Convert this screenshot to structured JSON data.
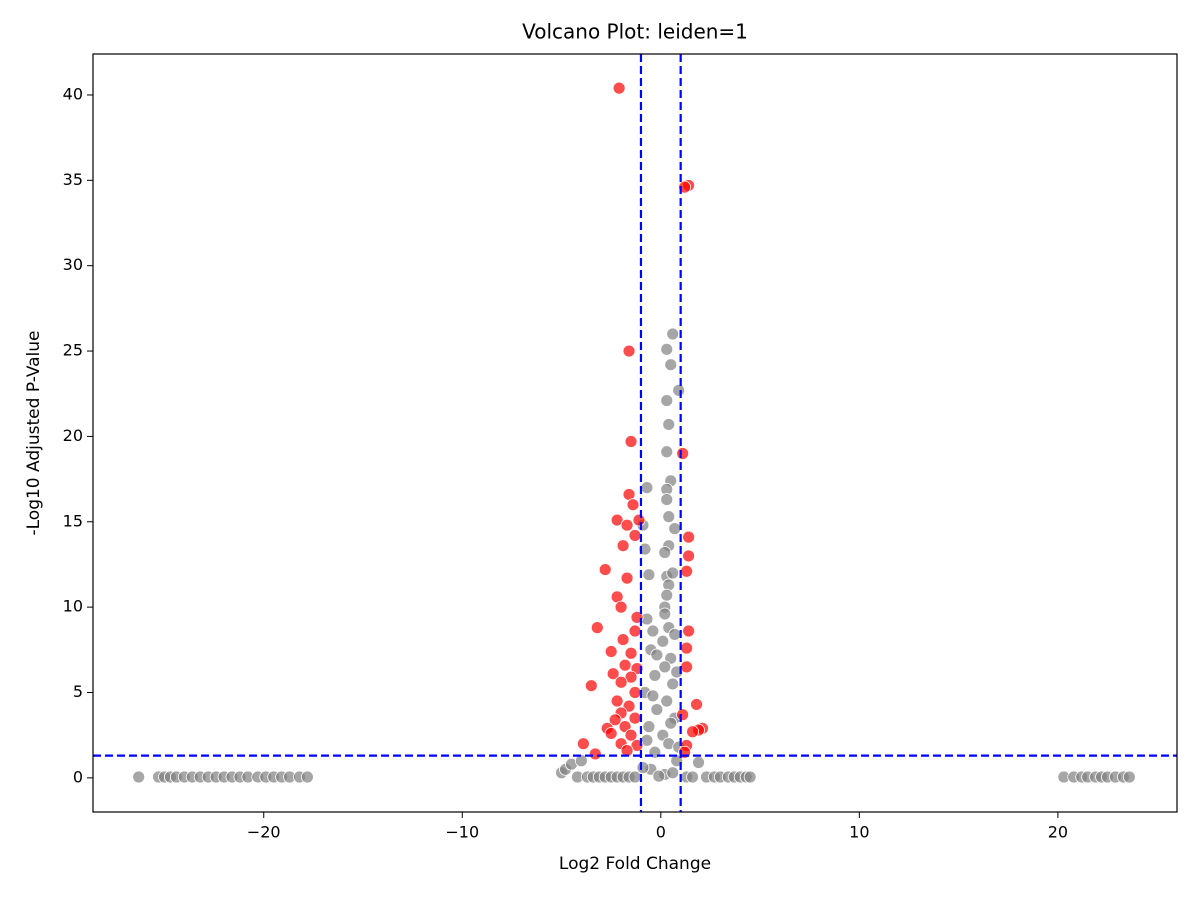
{
  "chart_data": {
    "type": "scatter",
    "title": "Volcano Plot: leiden=1",
    "x_label": "Log2 Fold Change",
    "y_label": "-Log10 Adjusted P-Value",
    "xlim": [
      -28.6,
      26.0
    ],
    "ylim": [
      -2.0,
      42.4
    ],
    "xticks": [
      {
        "value": -20,
        "label": "−20"
      },
      {
        "value": -10,
        "label": "−10"
      },
      0,
      10,
      20
    ],
    "yticks": [
      0,
      5,
      10,
      15,
      20,
      25,
      30,
      35,
      40
    ],
    "vlines": [
      -1,
      1
    ],
    "hline": 1.301,
    "threshold_color": "#0000ff",
    "series": [
      {
        "color": "#808080",
        "x": [
          -26.3,
          -25.3,
          -25.0,
          -24.7,
          -24.4,
          -24.0,
          -23.6,
          -23.2,
          -22.8,
          -22.4,
          -22.0,
          -21.6,
          -21.2,
          -20.8,
          -20.3,
          -19.9,
          -19.5,
          -19.1,
          -18.7,
          -18.2,
          -17.8,
          20.3,
          20.8,
          21.2,
          21.5,
          21.9,
          22.2,
          22.5,
          22.9,
          23.3,
          23.6,
          -5.0,
          -4.8,
          -4.5,
          -4.2,
          -4.0,
          -3.7,
          -3.4,
          -3.1,
          -2.8,
          -2.5,
          -2.2,
          -1.9,
          -1.6,
          -1.3,
          1.3,
          1.6,
          1.9,
          2.3,
          2.7,
          3.0,
          3.4,
          3.7,
          4.0,
          4.3,
          4.5,
          0.6,
          0.3,
          0.5,
          0.9,
          0.3,
          0.4,
          0.3,
          0.5,
          -0.7,
          0.3,
          0.3,
          0.4,
          0.7,
          -0.9,
          0.4,
          -0.8,
          0.2,
          -0.6,
          0.3,
          0.4,
          0.3,
          0.2,
          0.2,
          -0.7,
          0.4,
          -0.4,
          0.7,
          0.1,
          -0.5,
          0.5,
          0.2,
          -0.3,
          0.6,
          -0.8,
          0.3,
          -0.2,
          0.7,
          -0.6,
          0.1,
          0.4,
          -0.3,
          0.8,
          -0.5,
          0.2,
          -0.1,
          0.6,
          -0.9,
          0.9,
          -0.7,
          0.5,
          -0.4,
          0.8,
          -0.2,
          0.6
        ],
        "values": [
          0.05,
          0.05,
          0.05,
          0.05,
          0.05,
          0.05,
          0.05,
          0.05,
          0.05,
          0.05,
          0.05,
          0.05,
          0.05,
          0.05,
          0.05,
          0.05,
          0.05,
          0.05,
          0.05,
          0.05,
          0.05,
          0.05,
          0.05,
          0.05,
          0.05,
          0.05,
          0.05,
          0.05,
          0.05,
          0.05,
          0.05,
          0.3,
          0.5,
          0.8,
          0.05,
          1.0,
          0.05,
          0.05,
          0.05,
          0.05,
          0.05,
          0.05,
          0.05,
          0.05,
          0.05,
          0.05,
          0.05,
          0.9,
          0.05,
          0.05,
          0.05,
          0.05,
          0.05,
          0.05,
          0.05,
          0.05,
          26.0,
          25.1,
          24.2,
          22.7,
          22.1,
          20.7,
          19.1,
          17.4,
          17.0,
          16.9,
          16.3,
          15.3,
          14.6,
          14.8,
          13.6,
          13.4,
          13.2,
          11.9,
          11.8,
          11.3,
          10.7,
          10.0,
          9.6,
          9.3,
          8.8,
          8.6,
          8.4,
          8.0,
          7.5,
          7.0,
          6.5,
          6.0,
          5.5,
          5.0,
          4.5,
          4.0,
          3.5,
          3.0,
          2.5,
          2.0,
          1.5,
          1.0,
          0.5,
          0.2,
          0.1,
          0.3,
          0.6,
          1.8,
          2.2,
          3.2,
          4.8,
          6.2,
          7.2,
          12.0
        ]
      },
      {
        "color": "#ff0000",
        "x": [
          -2.1,
          1.4,
          1.2,
          -1.6,
          -1.5,
          1.1,
          -1.6,
          -1.4,
          -2.2,
          -1.7,
          -1.1,
          -1.3,
          1.4,
          -1.9,
          1.4,
          -2.8,
          1.3,
          -1.7,
          -2.2,
          -2.0,
          -1.2,
          -3.2,
          1.4,
          -1.9,
          -1.3,
          -2.5,
          1.3,
          -1.5,
          1.3,
          -2.4,
          -1.8,
          -1.2,
          -1.5,
          -3.5,
          -2.0,
          -1.3,
          -2.2,
          -1.6,
          1.8,
          -2.0,
          -1.3,
          -2.3,
          1.1,
          -1.8,
          -2.7,
          2.1,
          1.9,
          -1.5,
          -2.5,
          1.6,
          -3.9,
          -2.0,
          -1.2,
          1.3,
          -3.3,
          -1.7,
          1.2
        ],
        "values": [
          40.4,
          34.7,
          34.6,
          25.0,
          19.7,
          19.0,
          16.6,
          16.0,
          15.1,
          14.8,
          15.1,
          14.2,
          14.1,
          13.6,
          13.0,
          12.2,
          12.1,
          11.7,
          10.6,
          10.0,
          9.4,
          8.8,
          8.6,
          8.1,
          8.6,
          7.4,
          7.6,
          7.3,
          6.5,
          6.1,
          6.6,
          6.4,
          5.9,
          5.4,
          5.6,
          5.0,
          4.5,
          4.2,
          4.3,
          3.8,
          3.5,
          3.4,
          3.7,
          3.0,
          2.9,
          2.9,
          2.8,
          2.5,
          2.6,
          2.7,
          2.0,
          2.0,
          1.9,
          1.9,
          1.4,
          1.6,
          1.5
        ]
      }
    ]
  }
}
